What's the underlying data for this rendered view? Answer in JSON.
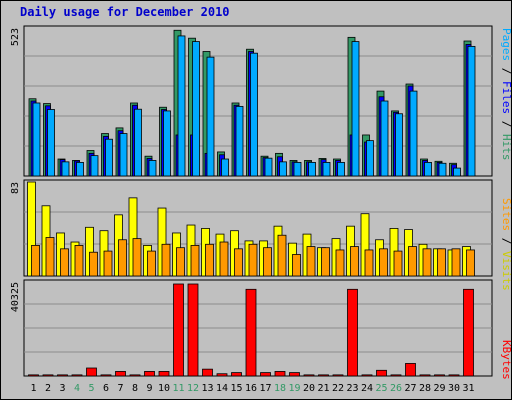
{
  "chart_data": [
    {
      "type": "bar",
      "title": "Daily usage for December 2010",
      "categories": [
        "1",
        "2",
        "3",
        "4",
        "5",
        "6",
        "7",
        "8",
        "9",
        "10",
        "11",
        "12",
        "13",
        "14",
        "15",
        "16",
        "17",
        "18",
        "19",
        "20",
        "21",
        "22",
        "23",
        "24",
        "25",
        "26",
        "27",
        "28",
        "29",
        "30",
        "31"
      ],
      "weekend_days": [
        "4",
        "5",
        "11",
        "12",
        "18",
        "19",
        "25",
        "26"
      ],
      "ylim": [
        0,
        523
      ],
      "y_tick_label": "523",
      "grid": true,
      "legend": "right side, vertical",
      "series": [
        {
          "name": "Hits",
          "color": "#339966",
          "values": [
            273,
            256,
            60,
            55,
            90,
            150,
            170,
            258,
            70,
            243,
            515,
            487,
            440,
            85,
            258,
            448,
            70,
            80,
            55,
            55,
            62,
            60,
            490,
            145,
            300,
            230,
            325,
            60,
            52,
            45,
            477
          ]
        },
        {
          "name": "Files",
          "color": "#0000ff",
          "values": [
            265,
            248,
            58,
            53,
            80,
            140,
            160,
            250,
            62,
            235,
            145,
            145,
            80,
            75,
            250,
            440,
            65,
            68,
            50,
            50,
            58,
            55,
            145,
            120,
            280,
            225,
            318,
            55,
            48,
            40,
            465
          ]
        },
        {
          "name": "Pages",
          "color": "#00aaff",
          "values": [
            258,
            235,
            50,
            48,
            72,
            130,
            150,
            236,
            55,
            230,
            495,
            475,
            420,
            60,
            246,
            434,
            63,
            50,
            48,
            48,
            48,
            48,
            475,
            125,
            265,
            220,
            300,
            48,
            45,
            28,
            458
          ]
        }
      ]
    },
    {
      "type": "bar",
      "categories": [
        "1",
        "2",
        "3",
        "4",
        "5",
        "6",
        "7",
        "8",
        "9",
        "10",
        "11",
        "12",
        "13",
        "14",
        "15",
        "16",
        "17",
        "18",
        "19",
        "20",
        "21",
        "22",
        "23",
        "24",
        "25",
        "26",
        "27",
        "28",
        "29",
        "30",
        "31"
      ],
      "ylim": [
        0,
        83
      ],
      "y_tick_label": "83",
      "grid": true,
      "legend": "right side, vertical",
      "series": [
        {
          "name": "Visits",
          "color": "#ffff00",
          "values": [
            83,
            62,
            38,
            30,
            43,
            40,
            54,
            69,
            27,
            60,
            38,
            45,
            42,
            37,
            40,
            31,
            31,
            44,
            29,
            37,
            25,
            33,
            44,
            55,
            32,
            42,
            41,
            28,
            24,
            23,
            26
          ]
        },
        {
          "name": "Sites",
          "color": "#ff9900",
          "values": [
            27,
            34,
            24,
            27,
            21,
            22,
            32,
            33,
            22,
            28,
            25,
            27,
            28,
            30,
            24,
            28,
            25,
            36,
            19,
            26,
            25,
            23,
            26,
            23,
            24,
            22,
            26,
            24,
            24,
            24,
            23
          ]
        }
      ]
    },
    {
      "type": "bar",
      "categories": [
        "1",
        "2",
        "3",
        "4",
        "5",
        "6",
        "7",
        "8",
        "9",
        "10",
        "11",
        "12",
        "13",
        "14",
        "15",
        "16",
        "17",
        "18",
        "19",
        "20",
        "21",
        "22",
        "23",
        "24",
        "25",
        "26",
        "27",
        "28",
        "29",
        "30",
        "31"
      ],
      "ylim": [
        0,
        40325
      ],
      "y_tick_label": "40325",
      "grid": true,
      "legend": "right side, vertical",
      "series": [
        {
          "name": "KBytes",
          "color": "#ff0000",
          "values": [
            500,
            500,
            500,
            500,
            3500,
            500,
            2000,
            500,
            2000,
            2000,
            40325,
            40325,
            3000,
            1000,
            1500,
            38000,
            1500,
            2000,
            1500,
            500,
            500,
            500,
            38000,
            500,
            2500,
            500,
            5500,
            500,
            500,
            500,
            38000
          ]
        }
      ]
    }
  ]
}
